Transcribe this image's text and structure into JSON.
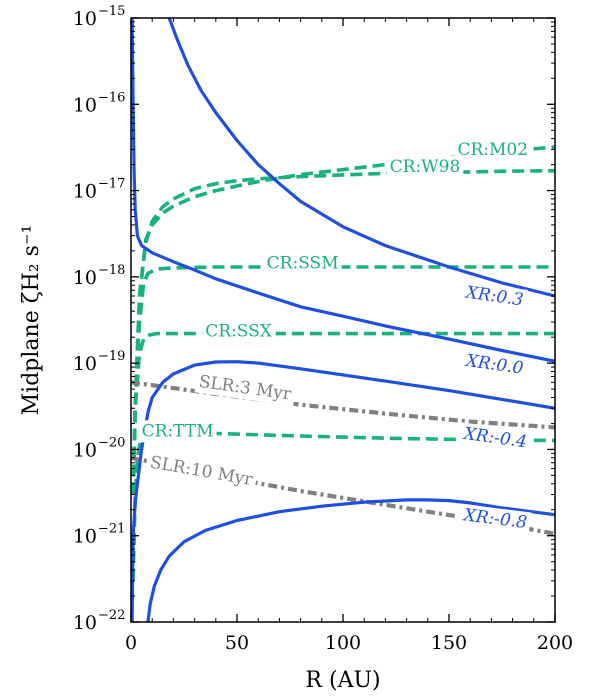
{
  "chart_data": {
    "type": "line",
    "xlabel": "R (AU)",
    "ylabel": "Midplane ζH₂ s⁻¹",
    "xlim": [
      0,
      200
    ],
    "ylim": [
      1e-22,
      1e-15
    ],
    "yscale": "log",
    "x_ticks": [
      "0",
      "50",
      "100",
      "150",
      "200"
    ],
    "y_ticks": [
      {
        "base": "10",
        "exp": "−22"
      },
      {
        "base": "10",
        "exp": "−21"
      },
      {
        "base": "10",
        "exp": "−20"
      },
      {
        "base": "10",
        "exp": "−19"
      },
      {
        "base": "10",
        "exp": "−18"
      },
      {
        "base": "10",
        "exp": "−17"
      },
      {
        "base": "10",
        "exp": "−16"
      },
      {
        "base": "10",
        "exp": "−15"
      }
    ],
    "colors": {
      "cr": "#19b27a",
      "xr": "#1f4fe0",
      "slr": "#808080"
    },
    "series": [
      {
        "name": "CR:M02",
        "group": "cr",
        "style": "dashed",
        "x": [
          1,
          2,
          4,
          7,
          10,
          15,
          20,
          30,
          40,
          50,
          60,
          80,
          100,
          120,
          150,
          180,
          200
        ],
        "y": [
          3e-21,
          3e-20,
          6e-19,
          2.7e-18,
          4e-18,
          5.5e-18,
          6.6e-18,
          8.5e-18,
          1e-17,
          1.13e-17,
          1.27e-17,
          1.53e-17,
          1.75e-17,
          2e-17,
          2.4e-17,
          2.9e-17,
          3.2e-17
        ],
        "label_pos": [
          154,
          2.9e-17
        ]
      },
      {
        "name": "CR:W98",
        "group": "cr",
        "style": "dashed",
        "x": [
          1,
          2,
          4,
          7,
          10,
          15,
          20,
          30,
          40,
          50,
          60,
          80,
          100,
          120,
          150,
          180,
          200
        ],
        "y": [
          3e-21,
          3e-20,
          6e-19,
          2.5e-18,
          4.4e-18,
          6.5e-18,
          8e-18,
          1.05e-17,
          1.2e-17,
          1.3e-17,
          1.37e-17,
          1.45e-17,
          1.52e-17,
          1.58e-17,
          1.63e-17,
          1.68e-17,
          1.7e-17
        ],
        "label_pos": [
          122,
          1.85e-17
        ]
      },
      {
        "name": "CR:SSM",
        "group": "cr",
        "style": "dashed",
        "x": [
          1,
          2,
          4,
          6,
          8,
          12,
          20,
          40,
          80,
          120,
          160,
          200
        ],
        "y": [
          3e-21,
          3e-20,
          3e-19,
          8.5e-19,
          1.1e-18,
          1.23e-18,
          1.27e-18,
          1.3e-18,
          1.3e-18,
          1.3e-18,
          1.3e-18,
          1.3e-18
        ],
        "label_pos": [
          64,
          1.4e-18
        ]
      },
      {
        "name": "CR:SSX",
        "group": "cr",
        "style": "dashed",
        "x": [
          1,
          2,
          4,
          6,
          8,
          12,
          20,
          40,
          80,
          120,
          160,
          200
        ],
        "y": [
          3e-21,
          3e-20,
          1.3e-19,
          1.9e-19,
          2.1e-19,
          2.2e-19,
          2.2e-19,
          2.2e-19,
          2.2e-19,
          2.2e-19,
          2.2e-19,
          2.2e-19
        ],
        "label_pos": [
          35,
          2.3e-19
        ]
      },
      {
        "name": "CR:TTM",
        "group": "cr",
        "style": "dashed",
        "x": [
          1,
          2,
          3,
          5,
          10,
          20,
          40,
          80,
          120,
          160,
          200
        ],
        "y": [
          3e-22,
          3e-21,
          8e-21,
          1.5e-20,
          1.65e-20,
          1.6e-20,
          1.53e-20,
          1.43e-20,
          1.35e-20,
          1.3e-20,
          1.27e-20
        ],
        "label_pos": [
          5,
          1.6e-20
        ]
      },
      {
        "name": "SLR:3 Myr",
        "group": "slr",
        "style": "dashdot",
        "x": [
          0,
          40,
          80,
          120,
          160,
          200
        ],
        "y": [
          6e-20,
          4.4e-20,
          3.3e-20,
          2.6e-20,
          2.1e-20,
          1.8e-20
        ],
        "label_pos": [
          32,
          6e-20
        ]
      },
      {
        "name": "SLR:10 Myr",
        "group": "slr",
        "style": "dashdot",
        "x": [
          0,
          40,
          80,
          110,
          140,
          170,
          200
        ],
        "y": [
          8e-21,
          5e-21,
          3.3e-21,
          2.5e-21,
          1.9e-21,
          1.45e-21,
          1.05e-21
        ],
        "label_pos": [
          9,
          7e-21
        ]
      },
      {
        "name": "XR:0.3",
        "group": "xr",
        "style": "solid",
        "x": [
          18,
          22,
          27,
          33,
          40,
          50,
          60,
          70,
          80,
          100,
          120,
          150,
          175,
          200
        ],
        "y": [
          1e-15,
          5.5e-16,
          2.8e-16,
          1.45e-16,
          8e-17,
          3.8e-17,
          2e-17,
          1.2e-17,
          7.5e-18,
          3.8e-18,
          2.3e-18,
          1.3e-18,
          8.5e-19,
          6e-19
        ],
        "label_pos": [
          158,
          6.5e-19
        ]
      },
      {
        "name": "XR:0.0",
        "group": "xr",
        "style": "solid",
        "x": [
          0.5,
          1,
          1.5,
          2,
          3,
          5,
          10,
          20,
          30,
          40,
          60,
          80,
          100,
          120,
          150,
          175,
          200
        ],
        "y": [
          1e-15,
          1e-16,
          1.5e-17,
          6e-18,
          3e-18,
          2.3e-18,
          1.9e-18,
          1.5e-18,
          1.2e-18,
          9.5e-19,
          6.5e-19,
          4.5e-19,
          3.5e-19,
          2.7e-19,
          1.9e-19,
          1.4e-19,
          1.05e-19
        ],
        "label_pos": [
          158,
          1.05e-19
        ]
      },
      {
        "name": "XR:-0.4",
        "group": "xr",
        "style": "solid",
        "x": [
          0.5,
          1,
          2,
          3,
          5,
          8,
          10,
          15,
          20,
          30,
          40,
          50,
          60,
          80,
          100,
          120,
          150,
          175,
          200
        ],
        "y": [
          1e-22,
          1e-21,
          2.4e-21,
          4e-21,
          1e-20,
          2.7e-20,
          4e-20,
          6e-20,
          7.5e-20,
          9.5e-20,
          1.03e-19,
          1.04e-19,
          1e-19,
          8.6e-20,
          7.3e-20,
          6.2e-20,
          4.8e-20,
          3.8e-20,
          3e-20
        ],
        "label_pos": [
          157,
          1.5e-20
        ]
      },
      {
        "name": "XR:-0.8",
        "group": "xr",
        "style": "solid",
        "x": [
          8,
          9,
          11,
          14,
          18,
          25,
          35,
          50,
          70,
          90,
          110,
          130,
          140,
          150,
          160,
          175,
          200
        ],
        "y": [
          1e-22,
          1.6e-22,
          2.6e-22,
          4e-22,
          5.8e-22,
          8.5e-22,
          1.15e-21,
          1.5e-21,
          1.9e-21,
          2.2e-21,
          2.45e-21,
          2.6e-21,
          2.6e-21,
          2.55e-21,
          2.4e-21,
          2.1e-21,
          1.75e-21
        ],
        "label_pos": [
          157,
          1.7e-21
        ]
      }
    ]
  }
}
